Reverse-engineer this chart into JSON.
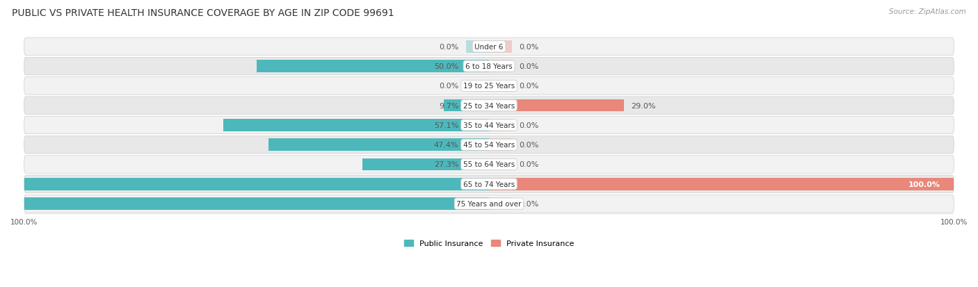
{
  "title": "PUBLIC VS PRIVATE HEALTH INSURANCE COVERAGE BY AGE IN ZIP CODE 99691",
  "source": "Source: ZipAtlas.com",
  "categories": [
    "Under 6",
    "6 to 18 Years",
    "19 to 25 Years",
    "25 to 34 Years",
    "35 to 44 Years",
    "45 to 54 Years",
    "55 to 64 Years",
    "65 to 74 Years",
    "75 Years and over"
  ],
  "public_values": [
    0.0,
    50.0,
    0.0,
    9.7,
    57.1,
    47.4,
    27.3,
    100.0,
    100.0
  ],
  "private_values": [
    0.0,
    0.0,
    0.0,
    29.0,
    0.0,
    0.0,
    0.0,
    100.0,
    0.0
  ],
  "public_color": "#4db8bb",
  "private_color": "#e8877a",
  "bar_height": 0.62,
  "row_bg_even": "#f2f2f2",
  "row_bg_odd": "#e8e8e8",
  "figsize": [
    14.06,
    4.14
  ],
  "dpi": 100,
  "title_fontsize": 10,
  "label_fontsize": 8,
  "category_fontsize": 7.5,
  "legend_fontsize": 8,
  "source_fontsize": 7.5,
  "axis_label_fontsize": 7.5,
  "zero_stub": 5.0,
  "bottom_tick_labels": [
    "100.0%",
    "100.0%"
  ]
}
